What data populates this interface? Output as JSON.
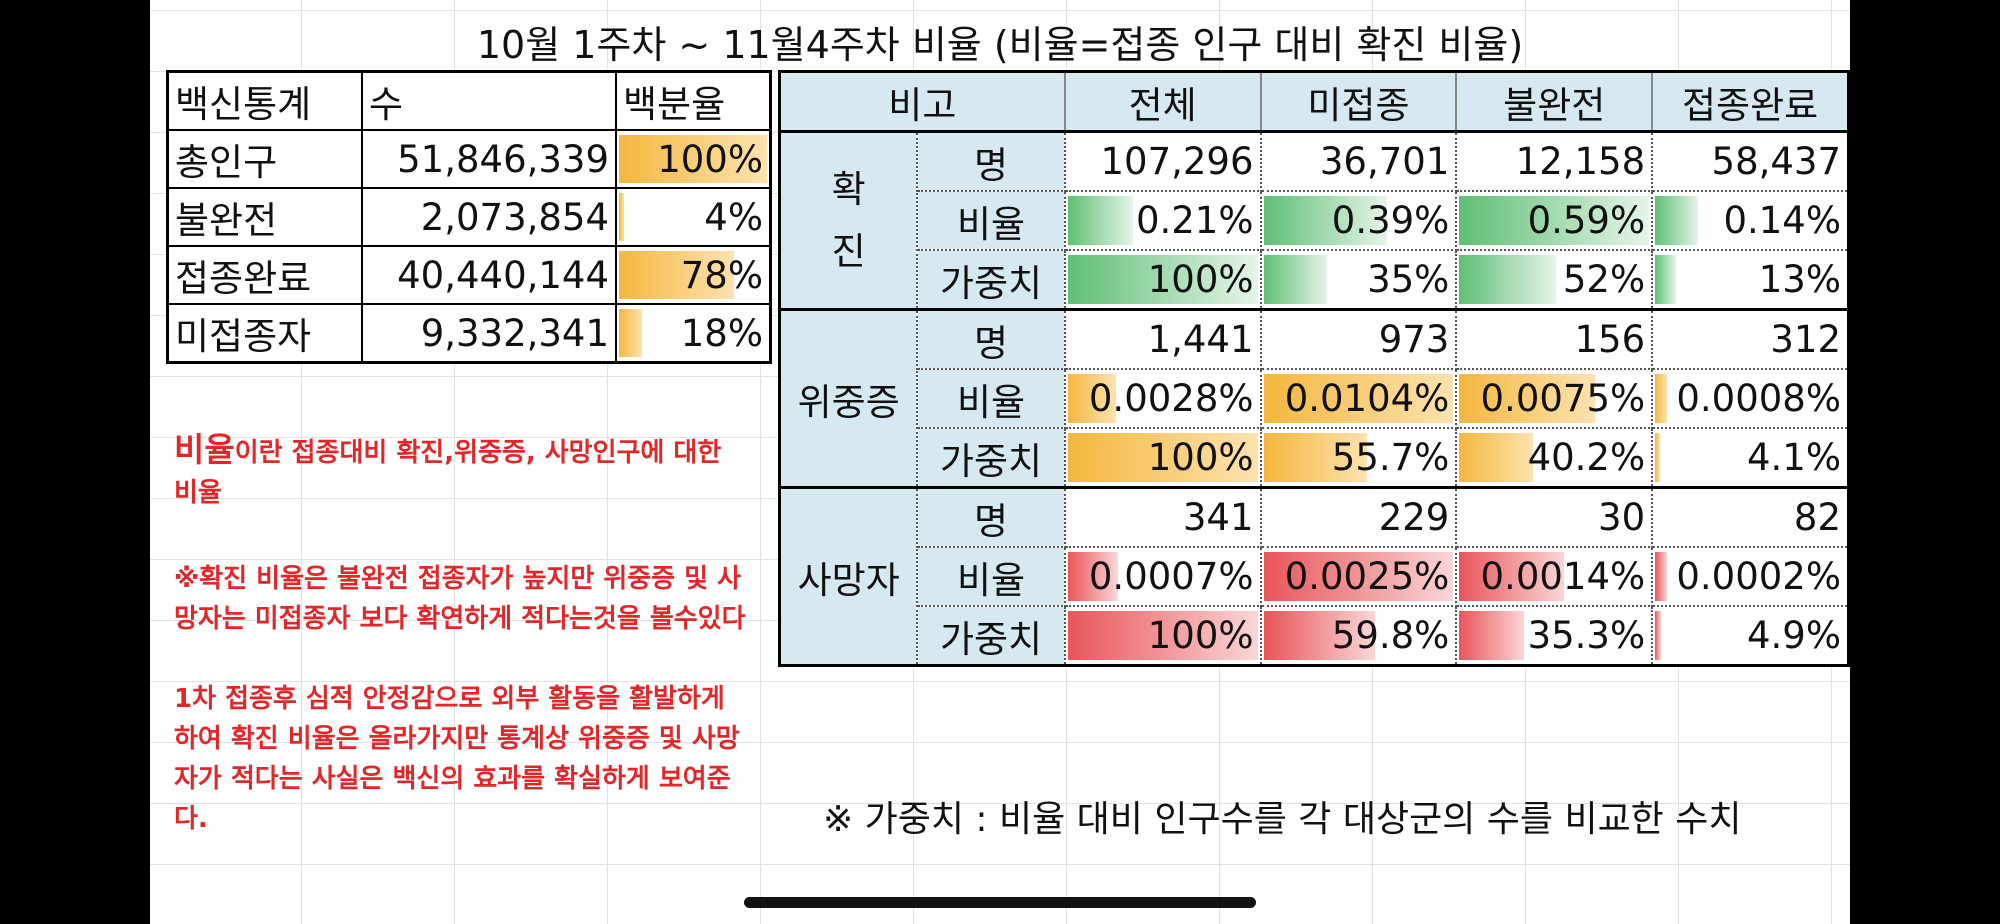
{
  "title": "10월 1주차 ~ 11월4주차 비율 (비율=접종 인구 대비 확진 비율)",
  "left_table": {
    "headers": [
      "백신통계",
      "수",
      "백분율"
    ],
    "rows": [
      {
        "label": "총인구",
        "count": "51,846,339",
        "pct": "100%",
        "fill": 1.0
      },
      {
        "label": "불완전",
        "count": "2,073,854",
        "pct": "4%",
        "fill": 0.04
      },
      {
        "label": "접종완료",
        "count": "40,440,144",
        "pct": "78%",
        "fill": 0.78
      },
      {
        "label": "미접종자",
        "count": "9,332,341",
        "pct": "18%",
        "fill": 0.18
      }
    ]
  },
  "right_table": {
    "headers": [
      "비고",
      "전체",
      "미접종",
      "불완전",
      "접종완료"
    ],
    "groups": [
      {
        "label": "확\n진",
        "color": "g",
        "rows": [
          {
            "sub": "명",
            "values": [
              "107,296",
              "36,701",
              "12,158",
              "58,437"
            ],
            "fills": null
          },
          {
            "sub": "비율",
            "values": [
              "0.21%",
              "0.39%",
              "0.59%",
              "0.14%"
            ],
            "fills": [
              0.36,
              0.66,
              1.0,
              0.24
            ]
          },
          {
            "sub": "가중치",
            "values": [
              "100%",
              "35%",
              "52%",
              "13%"
            ],
            "fills": [
              1.0,
              0.35,
              0.52,
              0.13
            ]
          }
        ]
      },
      {
        "label": "위중증",
        "color": "o",
        "rows": [
          {
            "sub": "명",
            "values": [
              "1,441",
              "973",
              "156",
              "312"
            ],
            "fills": null
          },
          {
            "sub": "비율",
            "values": [
              "0.0028%",
              "0.0104%",
              "0.0075%",
              "0.0008%"
            ],
            "fills": [
              0.27,
              1.0,
              0.72,
              0.08
            ]
          },
          {
            "sub": "가중치",
            "values": [
              "100%",
              "55.7%",
              "40.2%",
              "4.1%"
            ],
            "fills": [
              1.0,
              0.557,
              0.402,
              0.041
            ]
          }
        ]
      },
      {
        "label": "사망자",
        "color": "r",
        "rows": [
          {
            "sub": "명",
            "values": [
              "341",
              "229",
              "30",
              "82"
            ],
            "fills": null
          },
          {
            "sub": "비율",
            "values": [
              "0.0007%",
              "0.0025%",
              "0.0014%",
              "0.0002%"
            ],
            "fills": [
              0.28,
              1.0,
              0.56,
              0.08
            ]
          },
          {
            "sub": "가중치",
            "values": [
              "100%",
              "59.8%",
              "35.3%",
              "4.9%"
            ],
            "fills": [
              1.0,
              0.598,
              0.353,
              0.049
            ]
          }
        ]
      }
    ]
  },
  "notes": {
    "lead_big": "비율",
    "lead_rest": "이란 접종대비 확진,위중증, 사망인구에 대한 비율",
    "para1": "※확진 비율은 불완전 접종자가 높지만 위중증 및 사망자는 미접종자 보다 확연하게 적다는것을 볼수있다",
    "para2": "1차 접종후 심적 안정감으로 외부 활동을 활발하게 하여 확진 비율은 올라가지만 통계상 위중증 및 사망자가 적다는 사실은 백신의 효과를 확실하게 보여준다."
  },
  "footnote": "※ 가중치 : 비율 대비 인구수를 각 대상군의 수를 비교한 수치",
  "colors": {
    "header_bg": "#d6e8f0",
    "green": "#5fbf75",
    "orange": "#f4b73e",
    "red": "#e8555a",
    "note_red": "#e0282a"
  }
}
